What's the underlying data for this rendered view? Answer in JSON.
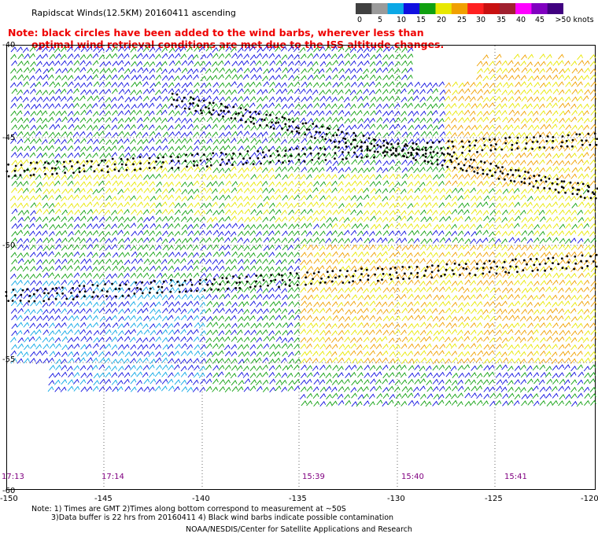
{
  "title": "Rapidscat Winds(12.5KM) 20160411 ascending",
  "note": {
    "line1": "Note: black circles have been added to the wind barbs, wherever less than",
    "line2": "optimal wind retrieval conditions are met due to the ISS altitude changes."
  },
  "legend": {
    "labels": [
      "0",
      "5",
      "10",
      "15",
      "20",
      "25",
      "30",
      "35",
      "40",
      "45",
      ">50 knots"
    ],
    "colors": [
      "#404040",
      "#9a9a9a",
      "#0ca8e6",
      "#1010e0",
      "#10a010",
      "#e8e800",
      "#f0a000",
      "#ff2020",
      "#c81010",
      "#a02030",
      "#ff00ff",
      "#8000c0",
      "#400080"
    ]
  },
  "axes": {
    "longitudes": [
      "-150",
      "-145",
      "-140",
      "-135",
      "-130",
      "-125",
      "-120"
    ],
    "latitudes": [
      "-40",
      "-45",
      "-50",
      "-55",
      "-60"
    ]
  },
  "pass_times": [
    "17:13",
    "17:14",
    "15:39",
    "15:40",
    "15:41"
  ],
  "footnotes": {
    "line1": "Note: 1) Times are GMT 2)Times along bottom correspond to measurement at ~50S",
    "line2": "3)Data buffer is 22 hrs from 20160411 4) Black wind barbs indicate possible contamination"
  },
  "credit": "NOAA/NESDIS/Center for Satellite Applications and Research"
}
